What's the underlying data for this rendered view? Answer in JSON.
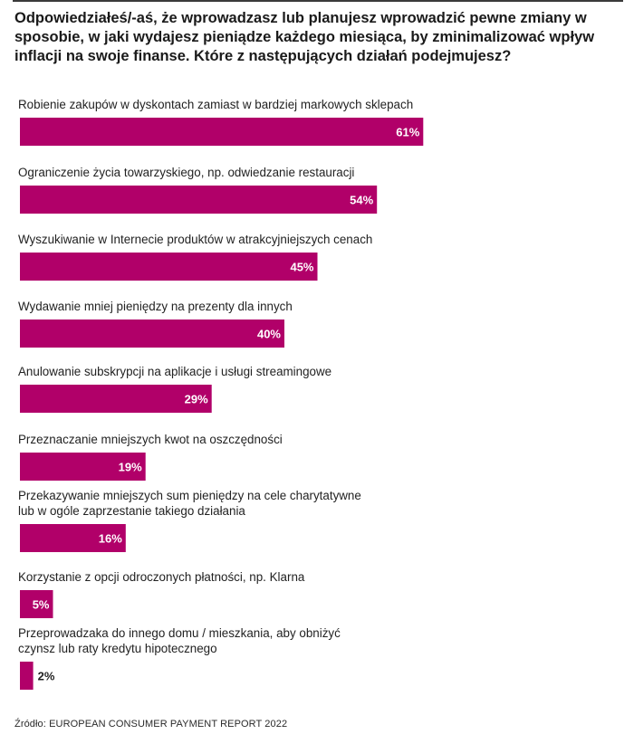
{
  "title": "Odpowiedziałeś/-aś, że wprowadzasz lub planujesz wprowadzić pewne zmiany w sposobie, w jaki wydajesz pieniądze każdego miesiąca, by zminimalizować wpływ inflacji na swoje finanse. Które z następujących działań podejmujesz?",
  "source": "Źródło: EUROPEAN CONSUMER PAYMENT REPORT 2022",
  "colors": {
    "bar": "#b10069",
    "label_inside": "#ffffff",
    "label_outside": "#222222"
  },
  "chart_data": {
    "type": "bar",
    "orientation": "horizontal",
    "unit": "%",
    "categories": [
      [
        "Robienie zakupów w dyskontach zamiast w bardziej markowych sklepach"
      ],
      [
        "Ograniczenie życia towarzyskiego, np. odwiedzanie restauracji"
      ],
      [
        "Wyszukiwanie w Internecie produktów w atrakcyjniejszych cenach"
      ],
      [
        "Wydawanie mniej pieniędzy na prezenty dla innych"
      ],
      [
        "Anulowanie subskrypcji na aplikacje i usługi streamingowe"
      ],
      [
        "Przeznaczanie mniejszych kwot na oszczędności"
      ],
      [
        "Przekazywanie mniejszych sum pieniędzy na cele charytatywne",
        "lub w ogóle zaprzestanie takiego działania"
      ],
      [
        "Korzystanie z opcji odroczonych płatności, np. Klarna"
      ],
      [
        "Przeprowadzaka do innego domu / mieszkania, aby obniżyć",
        "czynsz lub raty kredytu hipotecznego"
      ]
    ],
    "values": [
      61,
      54,
      45,
      40,
      29,
      19,
      16,
      5,
      2
    ],
    "value_labels": [
      "61%",
      "54%",
      "45%",
      "40%",
      "29%",
      "19%",
      "16%",
      "5%",
      "2%"
    ]
  }
}
